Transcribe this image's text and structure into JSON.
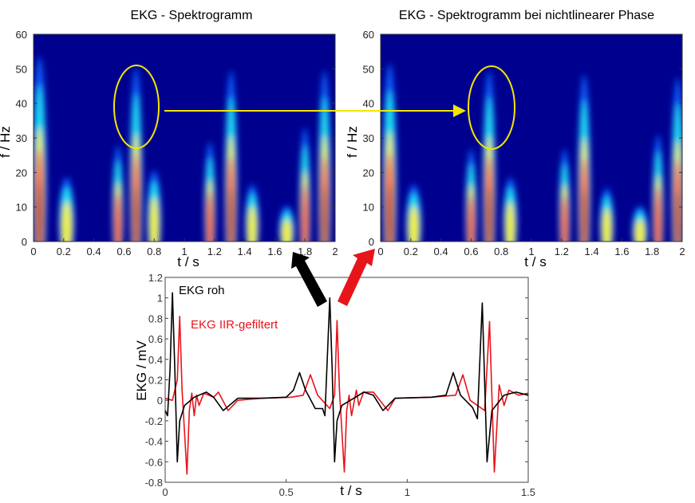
{
  "chart_data": [
    {
      "type": "heatmap",
      "title": "EKG - Spektrogramm",
      "xlabel": "t / s",
      "ylabel": "f / Hz",
      "xlim": [
        0,
        2
      ],
      "ylim": [
        0,
        60
      ],
      "xticks": [
        "0",
        "0.2",
        "0.4",
        "0.6",
        "0.8",
        "1",
        "1.2",
        "1.4",
        "1.6",
        "1.8",
        "2"
      ],
      "yticks": [
        "0",
        "10",
        "20",
        "30",
        "40",
        "50",
        "60"
      ],
      "colormap": "jet",
      "energy_bursts": [
        {
          "t": 0.04,
          "fmax": 52,
          "width": 0.09,
          "level": 4
        },
        {
          "t": 0.22,
          "fmax": 18,
          "width": 0.1,
          "level": 2
        },
        {
          "t": 0.56,
          "fmax": 27,
          "width": 0.07,
          "level": 3
        },
        {
          "t": 0.68,
          "fmax": 49,
          "width": 0.08,
          "level": 4
        },
        {
          "t": 0.8,
          "fmax": 20,
          "width": 0.09,
          "level": 2
        },
        {
          "t": 1.17,
          "fmax": 28,
          "width": 0.07,
          "level": 3
        },
        {
          "t": 1.31,
          "fmax": 48,
          "width": 0.08,
          "level": 4
        },
        {
          "t": 1.45,
          "fmax": 16,
          "width": 0.09,
          "level": 2
        },
        {
          "t": 1.68,
          "fmax": 10,
          "width": 0.1,
          "level": 2
        },
        {
          "t": 1.8,
          "fmax": 32,
          "width": 0.07,
          "level": 3
        },
        {
          "t": 1.93,
          "fmax": 48,
          "width": 0.08,
          "level": 4
        }
      ]
    },
    {
      "type": "heatmap",
      "title": "EKG - Spektrogramm  bei nichtlinearer Phase",
      "xlabel": "t / s",
      "ylabel": "f / Hz",
      "xlim": [
        0,
        2
      ],
      "ylim": [
        0,
        60
      ],
      "xticks": [
        "0",
        "0.2",
        "0.4",
        "0.6",
        "0.8",
        "1",
        "1.2",
        "1.4",
        "1.6",
        "1.8",
        "2"
      ],
      "yticks": [
        "0",
        "10",
        "20",
        "30",
        "40",
        "50",
        "60"
      ],
      "colormap": "jet",
      "energy_bursts": [
        {
          "t": 0.06,
          "fmax": 50,
          "width": 0.09,
          "level": 4
        },
        {
          "t": 0.22,
          "fmax": 16,
          "width": 0.1,
          "level": 2
        },
        {
          "t": 0.6,
          "fmax": 26,
          "width": 0.07,
          "level": 3
        },
        {
          "t": 0.72,
          "fmax": 48,
          "width": 0.08,
          "level": 4
        },
        {
          "t": 0.86,
          "fmax": 18,
          "width": 0.09,
          "level": 2
        },
        {
          "t": 1.22,
          "fmax": 26,
          "width": 0.07,
          "level": 3
        },
        {
          "t": 1.35,
          "fmax": 47,
          "width": 0.08,
          "level": 4
        },
        {
          "t": 1.5,
          "fmax": 15,
          "width": 0.09,
          "level": 2
        },
        {
          "t": 1.72,
          "fmax": 10,
          "width": 0.1,
          "level": 2
        },
        {
          "t": 1.84,
          "fmax": 30,
          "width": 0.07,
          "level": 3
        },
        {
          "t": 1.97,
          "fmax": 46,
          "width": 0.08,
          "level": 4
        }
      ]
    },
    {
      "type": "line",
      "xlabel": "t / s",
      "ylabel": "EKG / mV",
      "xlim": [
        0,
        1.5
      ],
      "ylim": [
        -0.8,
        1.2
      ],
      "xticks": [
        "0",
        "0.5",
        "1",
        "1.5"
      ],
      "yticks": [
        "-0.8",
        "-0.6",
        "-0.4",
        "-0.2",
        "0",
        "0.2",
        "0.4",
        "0.6",
        "0.8",
        "1",
        "1.2"
      ],
      "series": [
        {
          "name": "EKG roh",
          "color": "#000000",
          "points": [
            [
              0,
              -0.1
            ],
            [
              0.01,
              -0.15
            ],
            [
              0.02,
              0.3
            ],
            [
              0.03,
              1.05
            ],
            [
              0.04,
              0.3
            ],
            [
              0.05,
              -0.6
            ],
            [
              0.06,
              -0.2
            ],
            [
              0.08,
              -0.05
            ],
            [
              0.12,
              0.03
            ],
            [
              0.17,
              0.08
            ],
            [
              0.2,
              0.03
            ],
            [
              0.24,
              -0.1
            ],
            [
              0.3,
              0.02
            ],
            [
              0.4,
              0.02
            ],
            [
              0.5,
              0.03
            ],
            [
              0.53,
              0.1
            ],
            [
              0.555,
              0.27
            ],
            [
              0.58,
              0.1
            ],
            [
              0.62,
              -0.08
            ],
            [
              0.65,
              -0.08
            ],
            [
              0.66,
              -0.15
            ],
            [
              0.68,
              1.0
            ],
            [
              0.69,
              0.3
            ],
            [
              0.7,
              -0.6
            ],
            [
              0.71,
              -0.2
            ],
            [
              0.73,
              -0.05
            ],
            [
              0.8,
              0.05
            ],
            [
              0.82,
              0.08
            ],
            [
              0.86,
              0.05
            ],
            [
              0.9,
              -0.1
            ],
            [
              0.95,
              0.02
            ],
            [
              1.1,
              0.03
            ],
            [
              1.16,
              0.05
            ],
            [
              1.19,
              0.27
            ],
            [
              1.22,
              0.05
            ],
            [
              1.27,
              -0.07
            ],
            [
              1.29,
              -0.18
            ],
            [
              1.31,
              0.95
            ],
            [
              1.33,
              -0.6
            ],
            [
              1.35,
              -0.1
            ],
            [
              1.4,
              0.05
            ],
            [
              1.45,
              0.08
            ],
            [
              1.5,
              0.05
            ]
          ]
        },
        {
          "name": "EKG IIR-gefiltert",
          "color": "#e8141b",
          "points": [
            [
              0,
              0.02
            ],
            [
              0.03,
              0.0
            ],
            [
              0.05,
              0.2
            ],
            [
              0.06,
              0.82
            ],
            [
              0.07,
              0.1
            ],
            [
              0.09,
              -0.72
            ],
            [
              0.1,
              -0.1
            ],
            [
              0.11,
              0.07
            ],
            [
              0.12,
              -0.15
            ],
            [
              0.13,
              0.05
            ],
            [
              0.14,
              -0.05
            ],
            [
              0.16,
              0.07
            ],
            [
              0.2,
              0.03
            ],
            [
              0.22,
              0.08
            ],
            [
              0.26,
              -0.1
            ],
            [
              0.3,
              0.0
            ],
            [
              0.4,
              0.02
            ],
            [
              0.52,
              0.03
            ],
            [
              0.57,
              0.05
            ],
            [
              0.6,
              0.25
            ],
            [
              0.63,
              0.05
            ],
            [
              0.68,
              -0.08
            ],
            [
              0.7,
              0.05
            ],
            [
              0.71,
              0.78
            ],
            [
              0.72,
              0.1
            ],
            [
              0.74,
              -0.7
            ],
            [
              0.75,
              -0.1
            ],
            [
              0.76,
              0.05
            ],
            [
              0.77,
              -0.15
            ],
            [
              0.79,
              0.1
            ],
            [
              0.8,
              -0.05
            ],
            [
              0.82,
              0.08
            ],
            [
              0.86,
              0.08
            ],
            [
              0.92,
              -0.1
            ],
            [
              0.95,
              0.02
            ],
            [
              1.1,
              0.03
            ],
            [
              1.2,
              0.05
            ],
            [
              1.23,
              0.25
            ],
            [
              1.26,
              0.0
            ],
            [
              1.32,
              -0.1
            ],
            [
              1.34,
              0.77
            ],
            [
              1.36,
              -0.7
            ],
            [
              1.38,
              0.15
            ],
            [
              1.4,
              -0.05
            ],
            [
              1.42,
              0.1
            ],
            [
              1.46,
              0.05
            ],
            [
              1.5,
              0.07
            ]
          ]
        }
      ]
    }
  ],
  "annotations": {
    "highlight_color": "#f2e600",
    "raw_arrow_color": "#000000",
    "filtered_arrow_color": "#e8141b"
  }
}
